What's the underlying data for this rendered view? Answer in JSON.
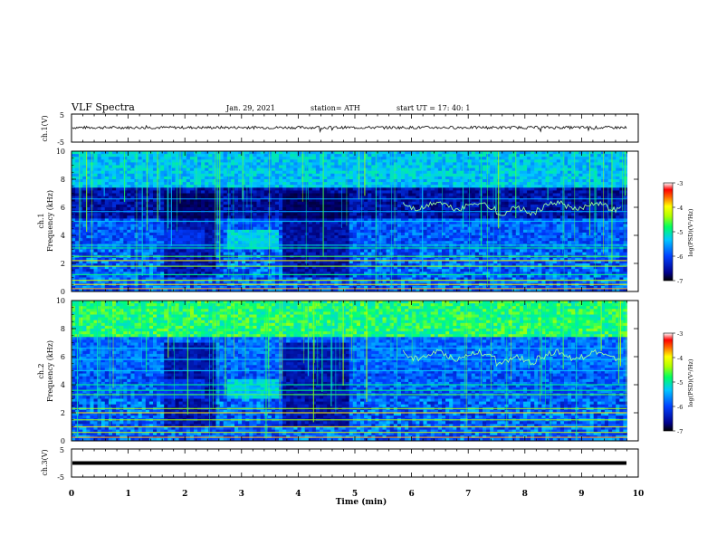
{
  "header": {
    "title": "VLF Spectra",
    "date": "Jan. 29, 2021",
    "station": "station= ATH",
    "start": "start UT = 17: 40: 1"
  },
  "chart_data": [
    {
      "type": "line",
      "panel": "ch1-waveform",
      "ylabel": "ch.1(V)",
      "yticks": [
        "5",
        "-5"
      ],
      "ylim": [
        -5,
        5
      ],
      "xlim": [
        0,
        10
      ],
      "series": [
        {
          "name": "",
          "baseline": 0.2,
          "amplitude": 0.5
        }
      ]
    },
    {
      "type": "heatmap",
      "panel": "ch1-spectrogram",
      "ylabel": "ch.1\nFrequency (kHz)",
      "yticks": [
        "0",
        "2",
        "4",
        "6",
        "8",
        "10"
      ],
      "ylim": [
        0,
        10
      ],
      "xlim": [
        0,
        9.8
      ],
      "colorbar": {
        "label": "log(PSD)(V²/Hz)",
        "ticks": [
          "-3",
          "-4",
          "-5",
          "-6",
          "-7"
        ],
        "range": [
          -7,
          -3
        ]
      }
    },
    {
      "type": "heatmap",
      "panel": "ch2-spectrogram",
      "ylabel": "ch.2\nFrequency (kHz)",
      "yticks": [
        "0",
        "2",
        "4",
        "6",
        "8",
        "10"
      ],
      "ylim": [
        0,
        10
      ],
      "xlim": [
        0,
        9.8
      ],
      "colorbar": {
        "label": "log(PSD)(V²/Hz)",
        "ticks": [
          "-3",
          "-4",
          "-5",
          "-6",
          "-7"
        ],
        "range": [
          -7,
          -3
        ]
      }
    },
    {
      "type": "line",
      "panel": "ch3-waveform",
      "ylabel": "ch.3(V)",
      "yticks": [
        "5",
        "-5"
      ],
      "ylim": [
        -5,
        5
      ],
      "xlim": [
        0,
        10
      ],
      "series": [
        {
          "name": "",
          "baseline": 0.0,
          "amplitude": 0.25
        }
      ]
    }
  ],
  "xaxis": {
    "label": "Time (min)",
    "ticks": [
      "0",
      "1",
      "2",
      "3",
      "4",
      "5",
      "6",
      "7",
      "8",
      "9",
      "10"
    ],
    "range": [
      0,
      10
    ]
  }
}
